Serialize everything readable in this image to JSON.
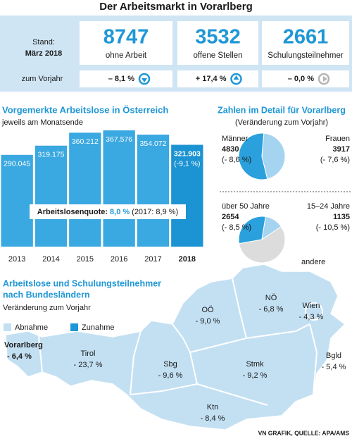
{
  "header": {
    "title": "Der Arbeitsmarkt in Vorarlberg"
  },
  "summary": {
    "stand_label": "Stand:",
    "date": "März 2018",
    "change_label": "zum Vorjahr",
    "stats": [
      {
        "value": "8747",
        "label": "ohne Arbeit",
        "change": "– 8,1 %",
        "trend": "down"
      },
      {
        "value": "3532",
        "label": "offene Stellen",
        "change": "+ 17,4 %",
        "trend": "up"
      },
      {
        "value": "2661",
        "label": "Schulungsteilnehmer",
        "change": "– 0,0 %",
        "trend": "flat"
      }
    ]
  },
  "chart_data": [
    {
      "type": "bar",
      "title": "Vorgemerkte Arbeitslose in Österreich",
      "subtitle": "jeweils am Monatsende",
      "categories": [
        "2013",
        "2014",
        "2015",
        "2016",
        "2017",
        "2018"
      ],
      "values": [
        290045,
        319175,
        360212,
        367576,
        354072,
        321903
      ],
      "value_labels": [
        "290.045",
        "319.175",
        "360.212",
        "367.576",
        "354.072",
        "321.903"
      ],
      "change_label": "(-9,1 %)",
      "colors": [
        "#3aa8e1",
        "#3aa8e1",
        "#3aa8e1",
        "#3aa8e1",
        "#3aa8e1",
        "#1c93d2"
      ],
      "annotation": {
        "label": "Arbeitslosenquote:",
        "value": "8,0 %",
        "comparison": "(2017: 8,9 %)"
      }
    },
    {
      "type": "pie",
      "categories": [
        "Männer",
        "Frauen"
      ],
      "values": [
        4830,
        3917
      ],
      "change_labels": [
        "(- 8,6 %)",
        "(- 7,6 %)"
      ],
      "colors": [
        "#2aa0dc",
        "#a4d4f0"
      ]
    },
    {
      "type": "pie",
      "categories": [
        "über 50 Jahre",
        "15–24 Jahre",
        "andere"
      ],
      "values": [
        2654,
        1135,
        4958
      ],
      "change_labels": [
        "(- 8,5 %)",
        "(- 10,5 %)",
        null
      ],
      "colors": [
        "#2aa0dc",
        "#a4d4f0",
        "#dcdcdc"
      ]
    }
  ],
  "pies_header": {
    "title": "Zahlen im Detail für Vorarlberg",
    "subtitle": "(Veränderung zum Vorjahr)"
  },
  "map": {
    "title_lines": [
      "Arbeitslose und Schulungsteilnehmer",
      "nach Bundesländern"
    ],
    "subtitle": "Veränderung zum Vorjahr",
    "legend": [
      {
        "label": "Abnahme",
        "color": "#c3e0f3"
      },
      {
        "label": "Zunahme",
        "color": "#1c96d6"
      }
    ],
    "regions": [
      {
        "name": "Vorarlberg",
        "change": "- 6,4 %"
      },
      {
        "name": "Tirol",
        "change": "- 23,7 %"
      },
      {
        "name": "Sbg",
        "change": "- 9,6 %"
      },
      {
        "name": "OÖ",
        "change": "- 9,0 %"
      },
      {
        "name": "NÖ",
        "change": "- 6,8 %"
      },
      {
        "name": "Wien",
        "change": "- 4,3 %"
      },
      {
        "name": "Bgld",
        "change": "- 5,4 %"
      },
      {
        "name": "Stmk",
        "change": "- 9,2 %"
      },
      {
        "name": "Ktn",
        "change": "- 8,4 %"
      }
    ]
  },
  "source": "VN GRAFIK, QUELLE: APA/AMS"
}
